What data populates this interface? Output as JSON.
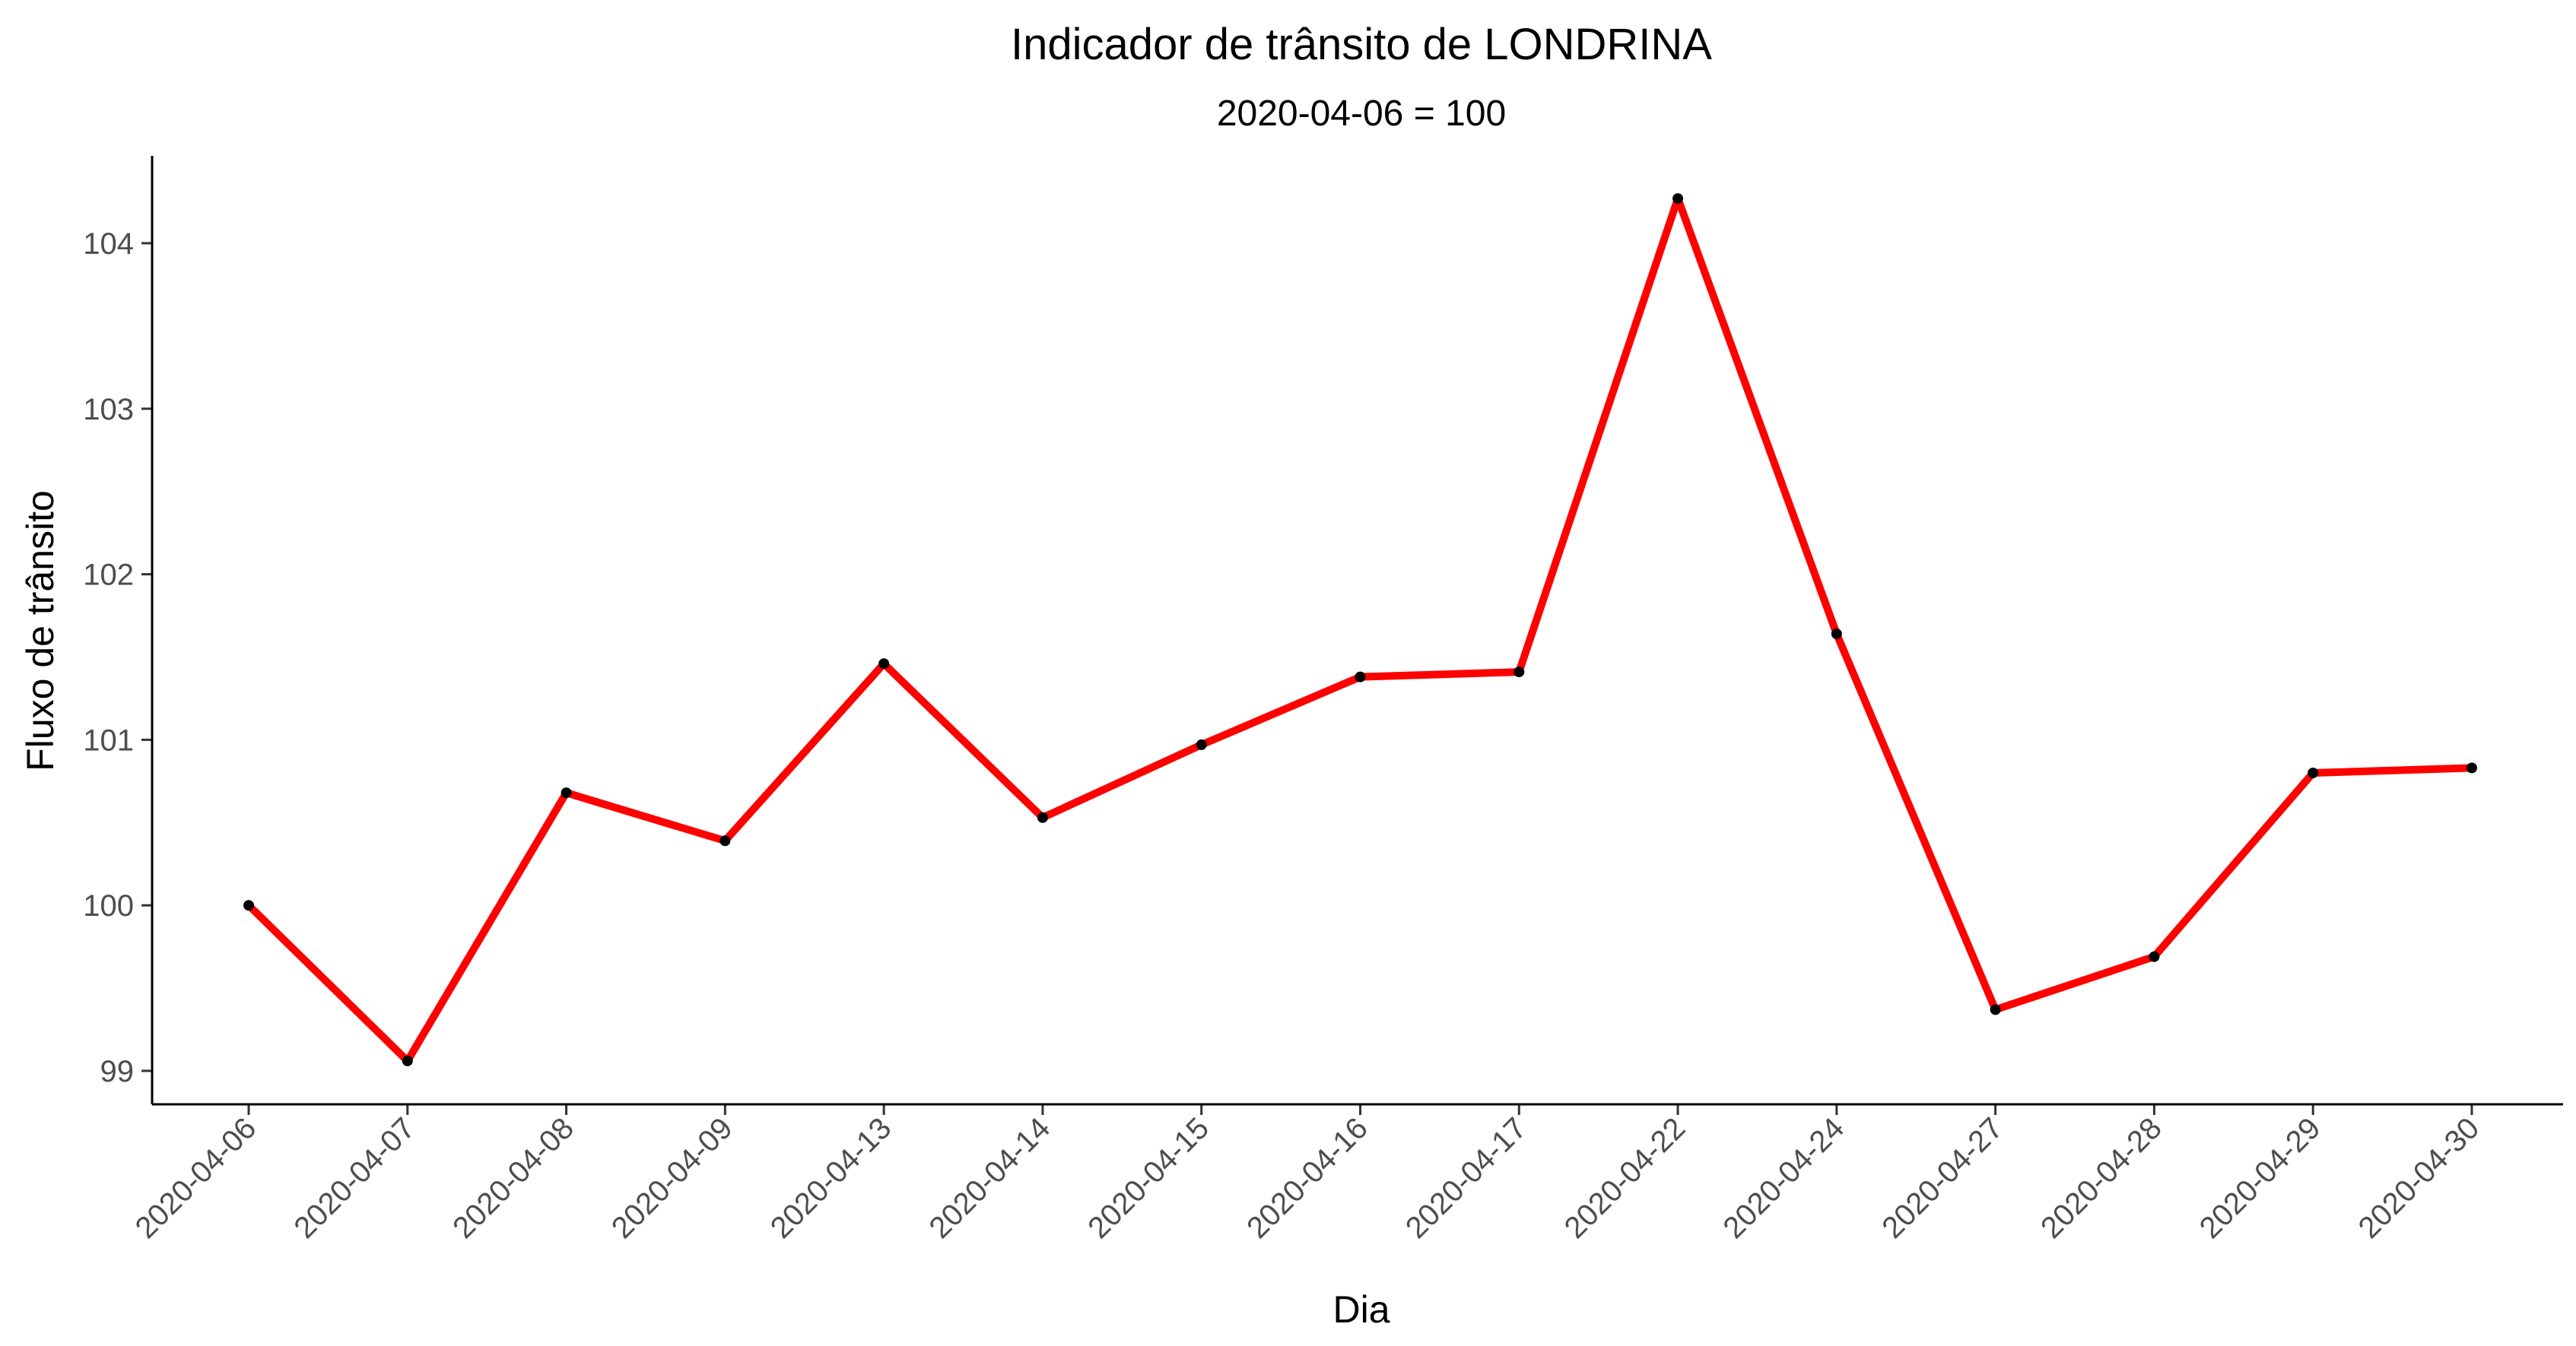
{
  "chart_data": {
    "type": "line",
    "title": "Indicador de trânsito de LONDRINA",
    "subtitle": "2020-04-06 = 100",
    "xlabel": "Dia",
    "ylabel": "Fluxo de trânsito",
    "x": [
      "2020-04-06",
      "2020-04-07",
      "2020-04-08",
      "2020-04-09",
      "2020-04-13",
      "2020-04-14",
      "2020-04-15",
      "2020-04-16",
      "2020-04-17",
      "2020-04-22",
      "2020-04-24",
      "2020-04-27",
      "2020-04-28",
      "2020-04-29",
      "2020-04-30"
    ],
    "y": [
      100.0,
      99.06,
      100.68,
      100.39,
      101.46,
      100.53,
      100.97,
      101.38,
      101.41,
      104.27,
      101.64,
      99.37,
      99.69,
      100.8,
      100.83
    ],
    "yticks": [
      99,
      100,
      101,
      102,
      103,
      104
    ],
    "ylim": [
      98.8,
      104.52
    ],
    "line_color": "#ff0000",
    "point_color": "#000000",
    "grid": false,
    "legend": "none"
  }
}
